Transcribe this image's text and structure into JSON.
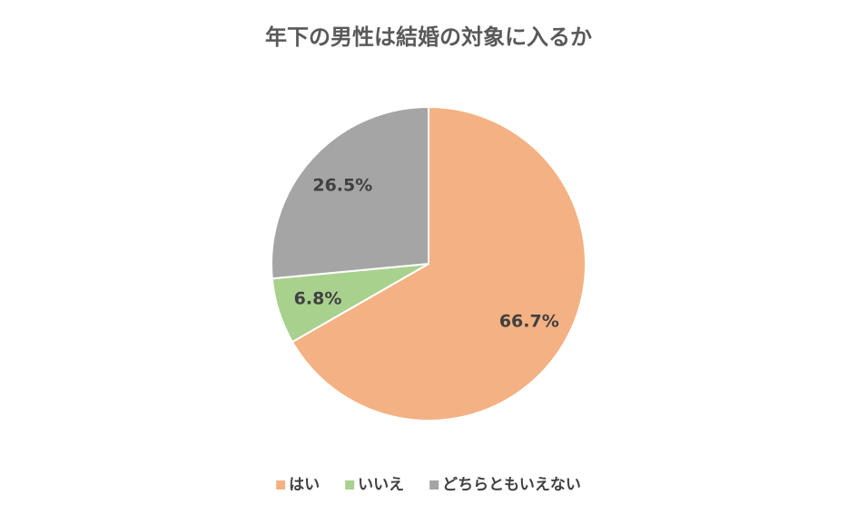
{
  "chart_data": {
    "type": "pie",
    "title": "年下の男性は結婚の対象に入るか",
    "categories": [
      "はい",
      "いいえ",
      "どちらともいえない"
    ],
    "values": [
      66.7,
      6.8,
      26.5
    ],
    "value_labels": [
      "66.7%",
      "6.8%",
      "26.5%"
    ],
    "colors": [
      "#f4b183",
      "#a9d18e",
      "#a5a5a5"
    ],
    "legend": "bottom"
  }
}
